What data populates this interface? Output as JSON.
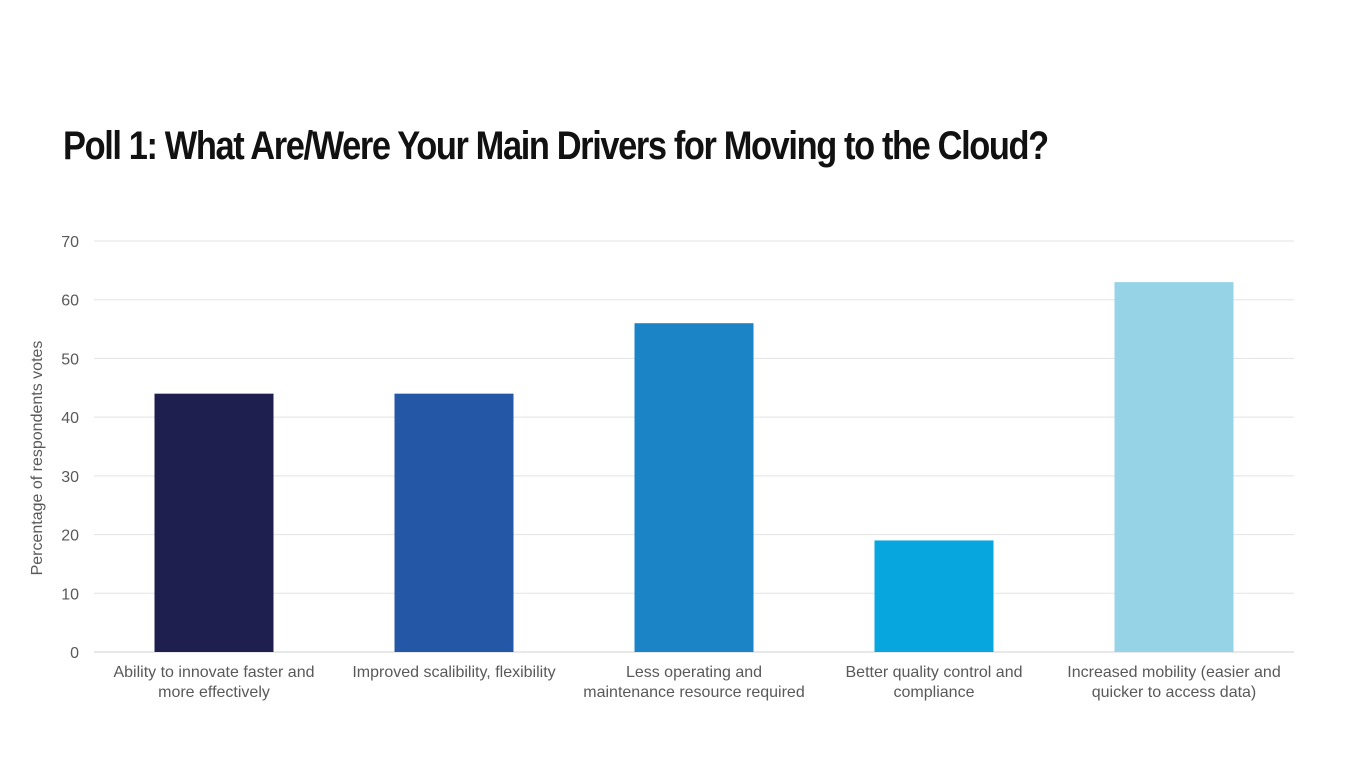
{
  "chart_data": {
    "type": "bar",
    "title": "Poll 1: What Are/Were Your Main Drivers for Moving to the Cloud?",
    "ylabel": "Percentage of respondents votes",
    "xlabel": "",
    "ylim": [
      0,
      70
    ],
    "yticks": [
      0,
      10,
      20,
      30,
      40,
      50,
      60,
      70
    ],
    "grid": true,
    "categories": [
      [
        "Ability to innovate faster and",
        "more effectively"
      ],
      [
        "Improved scalibility, flexibility"
      ],
      [
        "Less operating and",
        "maintenance resource required"
      ],
      [
        "Better quality control and",
        "compliance"
      ],
      [
        "Increased mobility (easier and",
        "quicker to access data)"
      ]
    ],
    "values": [
      44,
      44,
      56,
      19,
      63
    ],
    "colors": [
      "#1f1f4f",
      "#2457a6",
      "#1a84c7",
      "#07a6df",
      "#96d3e7"
    ]
  }
}
